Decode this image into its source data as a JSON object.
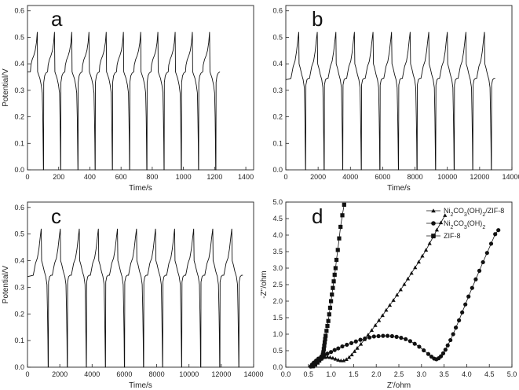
{
  "chart_data": [
    {
      "panel": "a",
      "type": "line",
      "xlabel": "Time/s",
      "ylabel": "Potential/V",
      "xlim": [
        0,
        1450
      ],
      "ylim": [
        0.0,
        0.62
      ],
      "xticks": [
        0,
        200,
        400,
        600,
        800,
        1000,
        1200,
        1400
      ],
      "yticks": [
        0.0,
        0.1,
        0.2,
        0.3,
        0.4,
        0.5,
        0.6
      ],
      "ytick_labels": [
        "0.0",
        "0.1",
        "0.2",
        "0.3",
        "0.4",
        "0.5",
        "0.6"
      ],
      "cycles": {
        "count": 11,
        "first_peak_t": 65,
        "period": 110.5,
        "start_potential": 0.37,
        "peak_potential": 0.52
      },
      "cycle_shape": [
        [
          0,
          0.37
        ],
        [
          0.03,
          0.395
        ],
        [
          0.1,
          0.415
        ],
        [
          0.2,
          0.432
        ],
        [
          0.28,
          0.45
        ],
        [
          0.35,
          0.48
        ],
        [
          0.4,
          0.52
        ],
        [
          0.42,
          0.37
        ],
        [
          0.47,
          0.36
        ],
        [
          0.55,
          0.345
        ],
        [
          0.63,
          0.32
        ],
        [
          0.69,
          0.29
        ],
        [
          0.72,
          0.2
        ],
        [
          0.74,
          0.1
        ],
        [
          0.755,
          0.0
        ],
        [
          0.765,
          0.0
        ],
        [
          0.775,
          0.33
        ],
        [
          0.83,
          0.355
        ],
        [
          0.9,
          0.365
        ],
        [
          1.0,
          0.37
        ]
      ]
    },
    {
      "panel": "b",
      "type": "line",
      "xlabel": "Time/s",
      "ylabel": "",
      "xlim": [
        0,
        14000
      ],
      "ylim": [
        0.0,
        0.62
      ],
      "xticks": [
        0,
        2000,
        4000,
        6000,
        8000,
        10000,
        12000,
        14000
      ],
      "yticks": [
        0.0,
        0.1,
        0.2,
        0.3,
        0.4,
        0.5,
        0.6
      ],
      "ytick_labels": [
        "0.0",
        "0.1",
        "0.2",
        "0.3",
        "0.4",
        "0.5",
        "0.6"
      ],
      "cycles": {
        "count": 11,
        "first_peak_t": 800,
        "period": 1150,
        "start_potential": 0.34,
        "peak_potential": 0.52
      },
      "cycle_shape": [
        [
          0,
          0.345
        ],
        [
          0.04,
          0.36
        ],
        [
          0.12,
          0.39
        ],
        [
          0.22,
          0.41
        ],
        [
          0.3,
          0.445
        ],
        [
          0.37,
          0.49
        ],
        [
          0.42,
          0.52
        ],
        [
          0.44,
          0.4
        ],
        [
          0.5,
          0.385
        ],
        [
          0.58,
          0.36
        ],
        [
          0.66,
          0.34
        ],
        [
          0.72,
          0.31
        ],
        [
          0.75,
          0.2
        ],
        [
          0.77,
          0.1
        ],
        [
          0.785,
          0.0
        ],
        [
          0.795,
          0.0
        ],
        [
          0.805,
          0.32
        ],
        [
          0.86,
          0.34
        ],
        [
          0.93,
          0.345
        ],
        [
          1.0,
          0.345
        ]
      ]
    },
    {
      "panel": "c",
      "type": "line",
      "xlabel": "Time/s",
      "ylabel": "Potential/V",
      "xlim": [
        0,
        14000
      ],
      "ylim": [
        0.0,
        0.62
      ],
      "xticks": [
        0,
        2000,
        4000,
        6000,
        8000,
        10000,
        12000,
        14000
      ],
      "yticks": [
        0.0,
        0.1,
        0.2,
        0.3,
        0.4,
        0.5,
        0.6
      ],
      "ytick_labels": [
        "0.0",
        "0.1",
        "0.2",
        "0.3",
        "0.4",
        "0.5",
        "0.6"
      ],
      "cycles": {
        "count": 11,
        "first_peak_t": 850,
        "period": 1180,
        "start_potential": 0.34,
        "peak_potential": 0.52
      },
      "cycle_shape": [
        [
          0,
          0.345
        ],
        [
          0.04,
          0.36
        ],
        [
          0.12,
          0.39
        ],
        [
          0.22,
          0.41
        ],
        [
          0.3,
          0.445
        ],
        [
          0.37,
          0.49
        ],
        [
          0.42,
          0.52
        ],
        [
          0.44,
          0.4
        ],
        [
          0.5,
          0.385
        ],
        [
          0.58,
          0.36
        ],
        [
          0.66,
          0.34
        ],
        [
          0.72,
          0.31
        ],
        [
          0.75,
          0.2
        ],
        [
          0.77,
          0.1
        ],
        [
          0.785,
          0.0
        ],
        [
          0.795,
          0.0
        ],
        [
          0.805,
          0.32
        ],
        [
          0.86,
          0.34
        ],
        [
          0.93,
          0.345
        ],
        [
          1.0,
          0.345
        ]
      ]
    },
    {
      "panel": "d",
      "type": "scatter",
      "xlabel": "Z'/ohm",
      "ylabel": "-Z''/ohm",
      "xlim": [
        0.0,
        5.0
      ],
      "ylim": [
        0.0,
        5.0
      ],
      "xticks": [
        0.0,
        0.5,
        1.0,
        1.5,
        2.0,
        2.5,
        3.0,
        3.5,
        4.0,
        4.5,
        5.0
      ],
      "yticks": [
        0.0,
        0.5,
        1.0,
        1.5,
        2.0,
        2.5,
        3.0,
        3.5,
        4.0,
        4.5,
        5.0
      ],
      "xtick_labels": [
        "0.0",
        "0.5",
        "1.0",
        "1.5",
        "2.0",
        "2.5",
        "3.0",
        "3.5",
        "4.0",
        "4.5",
        "5.0"
      ],
      "ytick_labels": [
        "0.0",
        "0.5",
        "1.0",
        "1.5",
        "2.0",
        "2.5",
        "3.0",
        "3.5",
        "4.0",
        "4.5",
        "5.0"
      ],
      "legend_position": "top-right",
      "series": [
        {
          "name": "Ni2CO3(OH)2/ZIF-8",
          "marker": "triangle",
          "legend_parts": [
            [
              "Ni",
              ""
            ],
            [
              "2",
              "sub"
            ],
            [
              "CO",
              ""
            ],
            [
              "3",
              "sub"
            ],
            [
              "(OH)",
              ""
            ],
            [
              "2",
              "sub"
            ],
            [
              "/ZIF-8",
              ""
            ]
          ],
          "points": [
            [
              0.58,
              0.02
            ],
            [
              0.62,
              0.08
            ],
            [
              0.66,
              0.14
            ],
            [
              0.7,
              0.2
            ],
            [
              0.75,
              0.24
            ],
            [
              0.8,
              0.28
            ],
            [
              0.86,
              0.3
            ],
            [
              0.92,
              0.31
            ],
            [
              0.98,
              0.3
            ],
            [
              1.04,
              0.28
            ],
            [
              1.1,
              0.25
            ],
            [
              1.16,
              0.22
            ],
            [
              1.22,
              0.2
            ],
            [
              1.28,
              0.2
            ],
            [
              1.34,
              0.24
            ],
            [
              1.4,
              0.3
            ],
            [
              1.46,
              0.38
            ],
            [
              1.52,
              0.48
            ],
            [
              1.58,
              0.58
            ],
            [
              1.66,
              0.7
            ],
            [
              1.74,
              0.84
            ],
            [
              1.82,
              0.98
            ],
            [
              1.9,
              1.12
            ],
            [
              1.98,
              1.27
            ],
            [
              2.06,
              1.42
            ],
            [
              2.14,
              1.57
            ],
            [
              2.22,
              1.73
            ],
            [
              2.3,
              1.88
            ],
            [
              2.38,
              2.03
            ],
            [
              2.46,
              2.19
            ],
            [
              2.54,
              2.35
            ],
            [
              2.62,
              2.51
            ],
            [
              2.7,
              2.68
            ],
            [
              2.78,
              2.85
            ],
            [
              2.86,
              3.02
            ],
            [
              2.94,
              3.19
            ],
            [
              3.02,
              3.37
            ],
            [
              3.1,
              3.55
            ],
            [
              3.18,
              3.75
            ],
            [
              3.26,
              3.95
            ],
            [
              3.34,
              4.16
            ],
            [
              3.43,
              4.38
            ],
            [
              3.52,
              4.6
            ]
          ]
        },
        {
          "name": "Ni2CO3(OH)2",
          "marker": "circle",
          "legend_parts": [
            [
              "Ni",
              ""
            ],
            [
              "2",
              "sub"
            ],
            [
              "CO",
              ""
            ],
            [
              "3",
              "sub"
            ],
            [
              "(OH)",
              ""
            ],
            [
              "2",
              "sub"
            ]
          ],
          "points": [
            [
              0.55,
              0.02
            ],
            [
              0.58,
              0.08
            ],
            [
              0.62,
              0.14
            ],
            [
              0.67,
              0.2
            ],
            [
              0.72,
              0.26
            ],
            [
              0.78,
              0.31
            ],
            [
              0.85,
              0.36
            ],
            [
              0.92,
              0.41
            ],
            [
              1.0,
              0.46
            ],
            [
              1.08,
              0.52
            ],
            [
              1.16,
              0.57
            ],
            [
              1.25,
              0.63
            ],
            [
              1.35,
              0.68
            ],
            [
              1.45,
              0.73
            ],
            [
              1.55,
              0.78
            ],
            [
              1.65,
              0.83
            ],
            [
              1.75,
              0.87
            ],
            [
              1.85,
              0.9
            ],
            [
              1.95,
              0.93
            ],
            [
              2.05,
              0.94
            ],
            [
              2.15,
              0.95
            ],
            [
              2.25,
              0.95
            ],
            [
              2.35,
              0.94
            ],
            [
              2.45,
              0.92
            ],
            [
              2.55,
              0.89
            ],
            [
              2.65,
              0.85
            ],
            [
              2.75,
              0.79
            ],
            [
              2.85,
              0.71
            ],
            [
              2.95,
              0.62
            ],
            [
              3.05,
              0.51
            ],
            [
              3.15,
              0.4
            ],
            [
              3.22,
              0.32
            ],
            [
              3.28,
              0.26
            ],
            [
              3.33,
              0.24
            ],
            [
              3.38,
              0.27
            ],
            [
              3.43,
              0.33
            ],
            [
              3.48,
              0.42
            ],
            [
              3.53,
              0.53
            ],
            [
              3.58,
              0.66
            ],
            [
              3.64,
              0.82
            ],
            [
              3.7,
              1.0
            ],
            [
              3.76,
              1.2
            ],
            [
              3.83,
              1.42
            ],
            [
              3.9,
              1.66
            ],
            [
              3.97,
              1.9
            ],
            [
              4.04,
              2.14
            ],
            [
              4.12,
              2.4
            ],
            [
              4.2,
              2.66
            ],
            [
              4.28,
              2.92
            ],
            [
              4.36,
              3.18
            ],
            [
              4.45,
              3.46
            ],
            [
              4.54,
              3.74
            ],
            [
              4.63,
              4.03
            ],
            [
              4.7,
              4.15
            ]
          ]
        },
        {
          "name": "ZIF-8",
          "marker": "square",
          "legend_parts": [
            [
              "ZIF-8",
              ""
            ]
          ],
          "points": [
            [
              0.6,
              0.03
            ],
            [
              0.65,
              0.08
            ],
            [
              0.7,
              0.14
            ],
            [
              0.74,
              0.2
            ],
            [
              0.78,
              0.26
            ],
            [
              0.8,
              0.32
            ],
            [
              0.82,
              0.38
            ],
            [
              0.83,
              0.45
            ],
            [
              0.84,
              0.55
            ],
            [
              0.85,
              0.65
            ],
            [
              0.86,
              0.75
            ],
            [
              0.87,
              0.85
            ],
            [
              0.88,
              0.95
            ],
            [
              0.9,
              1.1
            ],
            [
              0.92,
              1.25
            ],
            [
              0.94,
              1.4
            ],
            [
              0.96,
              1.6
            ],
            [
              0.98,
              1.8
            ],
            [
              1.0,
              2.0
            ],
            [
              1.02,
              2.2
            ],
            [
              1.04,
              2.4
            ],
            [
              1.06,
              2.6
            ],
            [
              1.08,
              2.8
            ],
            [
              1.1,
              3.0
            ],
            [
              1.12,
              3.25
            ],
            [
              1.15,
              3.55
            ],
            [
              1.18,
              3.9
            ],
            [
              1.21,
              4.25
            ],
            [
              1.25,
              4.6
            ],
            [
              1.29,
              4.92
            ]
          ]
        }
      ]
    }
  ]
}
